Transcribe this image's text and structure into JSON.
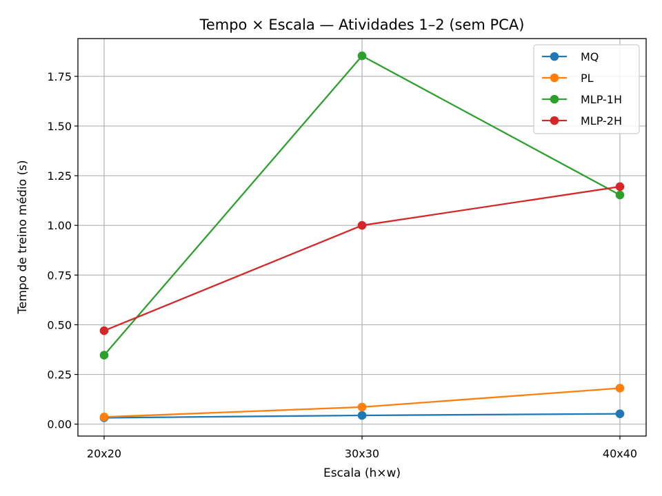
{
  "chart_data": {
    "type": "line",
    "title": "Tempo × Escala — Atividades 1–2 (sem PCA)",
    "xlabel": "Escala (h×w)",
    "ylabel": "Tempo de treino médio (s)",
    "categories": [
      "20x20",
      "30x30",
      "40x40"
    ],
    "ylim": [
      -0.06,
      1.94
    ],
    "yticks": [
      "0.00",
      "0.25",
      "0.50",
      "0.75",
      "1.00",
      "1.25",
      "1.50",
      "1.75"
    ],
    "grid": true,
    "legend_position": "top-right",
    "series": [
      {
        "name": "MQ",
        "color": "#1f77b4",
        "values": [
          0.032,
          0.044,
          0.052
        ]
      },
      {
        "name": "PL",
        "color": "#ff7f0e",
        "values": [
          0.036,
          0.086,
          0.181
        ]
      },
      {
        "name": "MLP-1H",
        "color": "#2ca02c",
        "values": [
          0.347,
          1.853,
          1.153
        ]
      },
      {
        "name": "MLP-2H",
        "color": "#d62728",
        "values": [
          0.47,
          1.0,
          1.195
        ]
      }
    ]
  }
}
